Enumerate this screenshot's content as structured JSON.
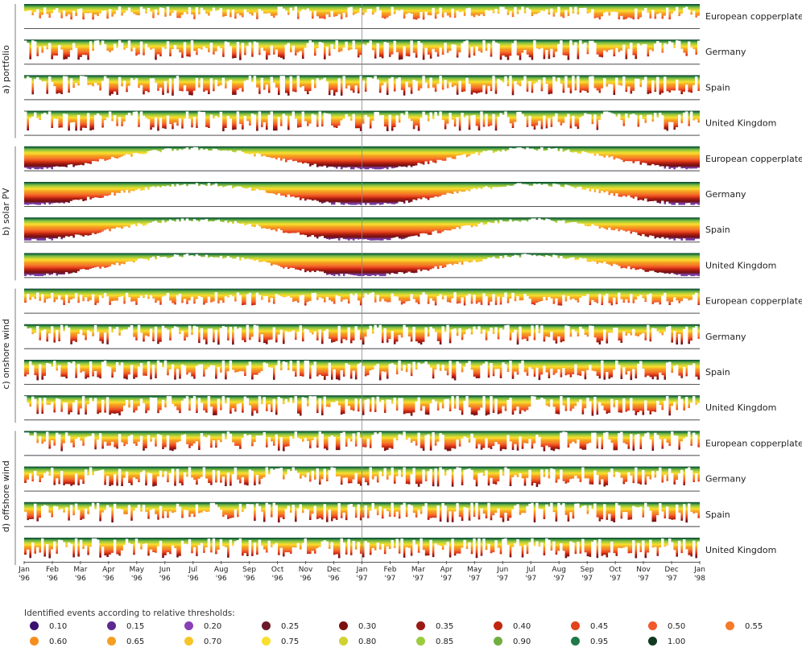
{
  "chart_data": {
    "type": "heatmap",
    "groups": [
      {
        "label": "a) portfolio",
        "rows": [
          "European copperplate",
          "Germany",
          "Spain",
          "United Kingdom"
        ]
      },
      {
        "label": "b) solar PV",
        "rows": [
          "European copperplate",
          "Germany",
          "Spain",
          "United Kingdom"
        ]
      },
      {
        "label": "c) onshore wind",
        "rows": [
          "European copperplate",
          "Germany",
          "Spain",
          "United Kingdom"
        ]
      },
      {
        "label": "d) offshore wind",
        "rows": [
          "European copperplate",
          "Germany",
          "Spain",
          "United Kingdom"
        ]
      }
    ],
    "x_ticks": [
      [
        "Jan",
        "'96"
      ],
      [
        "Feb",
        "'96"
      ],
      [
        "Mar",
        "'96"
      ],
      [
        "Apr",
        "'96"
      ],
      [
        "May",
        "'96"
      ],
      [
        "Jun",
        "'96"
      ],
      [
        "Jul",
        "'96"
      ],
      [
        "Aug",
        "'96"
      ],
      [
        "Sep",
        "'96"
      ],
      [
        "Oct",
        "'96"
      ],
      [
        "Nov",
        "'96"
      ],
      [
        "Dec",
        "'96"
      ],
      [
        "Jan",
        "'97"
      ],
      [
        "Feb",
        "'97"
      ],
      [
        "Mar",
        "'97"
      ],
      [
        "Apr",
        "'97"
      ],
      [
        "May",
        "'97"
      ],
      [
        "Jun",
        "'97"
      ],
      [
        "Jul",
        "'97"
      ],
      [
        "Aug",
        "'97"
      ],
      [
        "Sep",
        "'97"
      ],
      [
        "Oct",
        "'97"
      ],
      [
        "Nov",
        "'97"
      ],
      [
        "Dec",
        "'97"
      ],
      [
        "Jan",
        "'98"
      ]
    ],
    "x_range": [
      "1996-01-01",
      "1998-01-01"
    ],
    "legend_title": "Identified events according to relative thresholds:",
    "thresholds": [
      {
        "label": "0.10",
        "color": "#3b0f70"
      },
      {
        "label": "0.15",
        "color": "#5c2a8e"
      },
      {
        "label": "0.20",
        "color": "#8a3fb5"
      },
      {
        "label": "0.25",
        "color": "#6b1a2a"
      },
      {
        "label": "0.30",
        "color": "#7d0f0f"
      },
      {
        "label": "0.35",
        "color": "#9c1a14"
      },
      {
        "label": "0.40",
        "color": "#c0260f"
      },
      {
        "label": "0.45",
        "color": "#e2431a"
      },
      {
        "label": "0.50",
        "color": "#f2592a"
      },
      {
        "label": "0.55",
        "color": "#f57a2a"
      },
      {
        "label": "0.60",
        "color": "#f58e1e"
      },
      {
        "label": "0.65",
        "color": "#f5a023"
      },
      {
        "label": "0.70",
        "color": "#f7c427"
      },
      {
        "label": "0.75",
        "color": "#f9df2e"
      },
      {
        "label": "0.80",
        "color": "#cfd232"
      },
      {
        "label": "0.85",
        "color": "#9ccc3e"
      },
      {
        "label": "0.90",
        "color": "#6fae3f"
      },
      {
        "label": "0.95",
        "color": "#1f7a45"
      },
      {
        "label": "1.00",
        "color": "#0f3a1f"
      }
    ]
  }
}
